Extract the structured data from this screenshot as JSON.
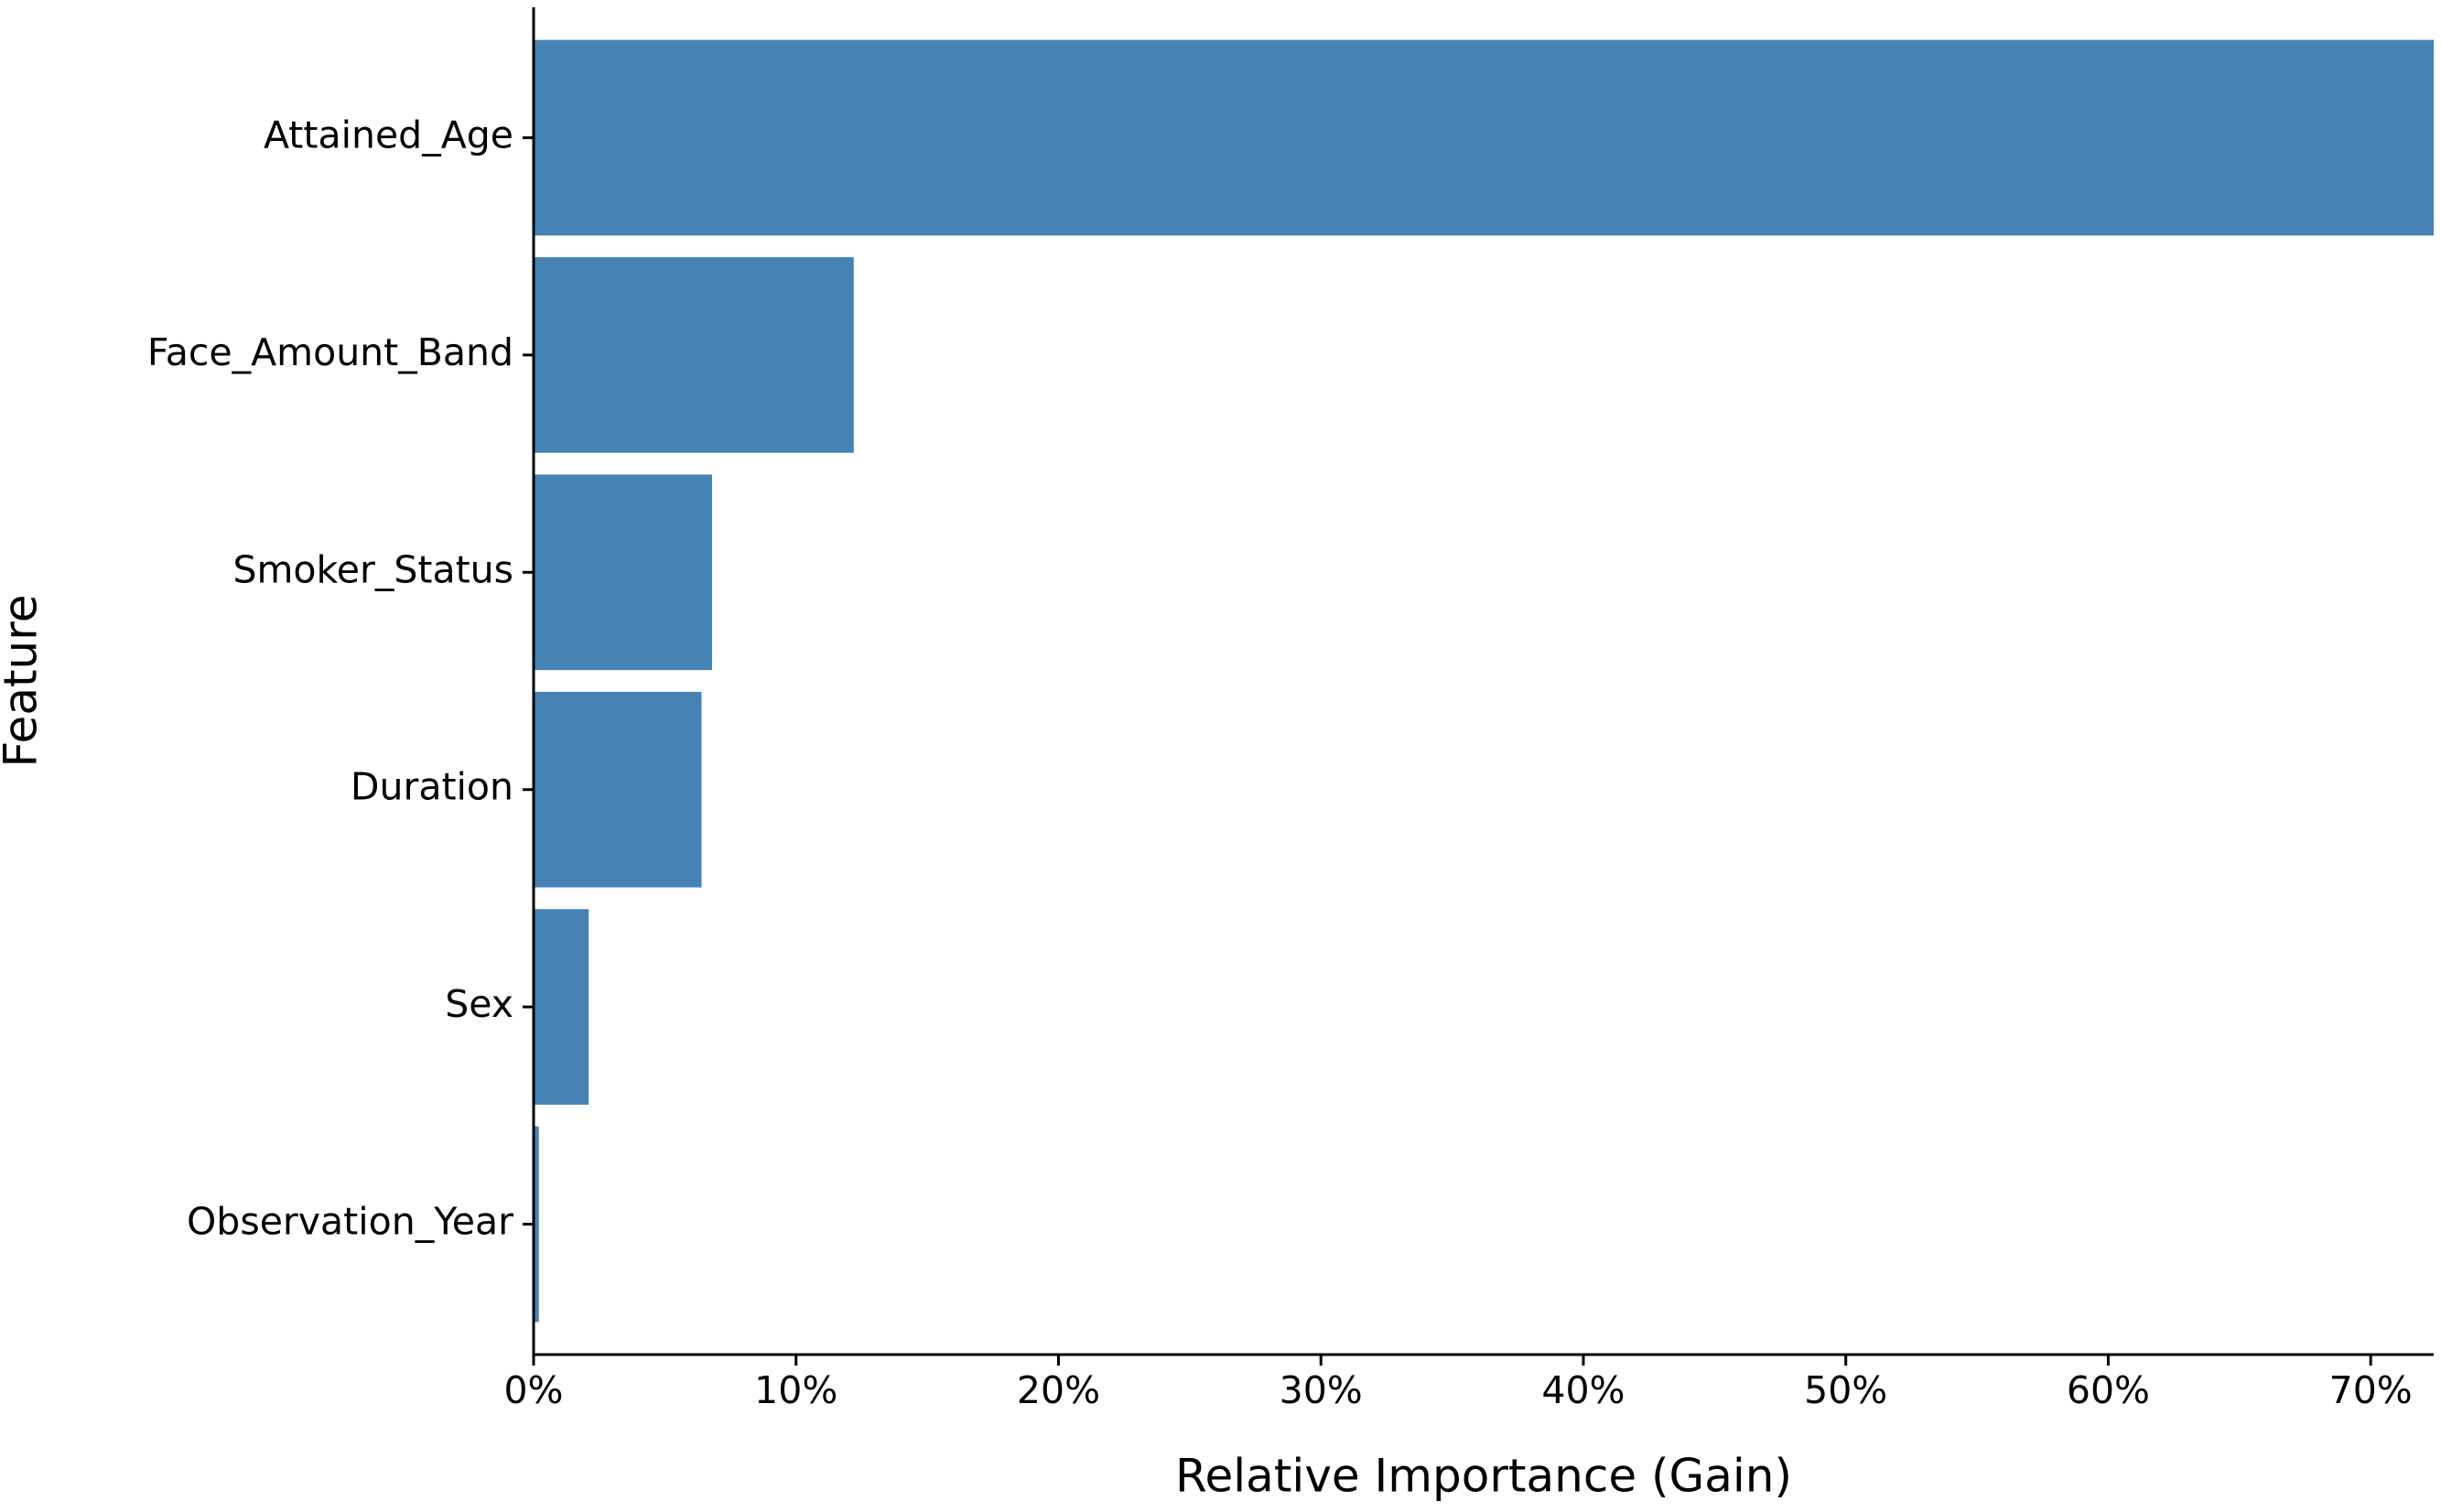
{
  "chart_data": {
    "type": "barh",
    "xlabel": "Relative Importance (Gain)",
    "ylabel": "Feature",
    "categories": [
      "Attained_Age",
      "Face_Amount_Band",
      "Smoker_Status",
      "Duration",
      "Sex",
      "Observation_Year"
    ],
    "values": [
      72.4,
      12.2,
      6.8,
      6.4,
      2.1,
      0.2
    ],
    "color": "#4682b4",
    "xlim": [
      0,
      72.4
    ],
    "xticks": [
      {
        "value": 0,
        "label": "0%"
      },
      {
        "value": 10,
        "label": "10%"
      },
      {
        "value": 20,
        "label": "20%"
      },
      {
        "value": 30,
        "label": "30%"
      },
      {
        "value": 40,
        "label": "40%"
      },
      {
        "value": 50,
        "label": "50%"
      },
      {
        "value": 60,
        "label": "60%"
      },
      {
        "value": 70,
        "label": "70%"
      }
    ],
    "grid": false
  }
}
